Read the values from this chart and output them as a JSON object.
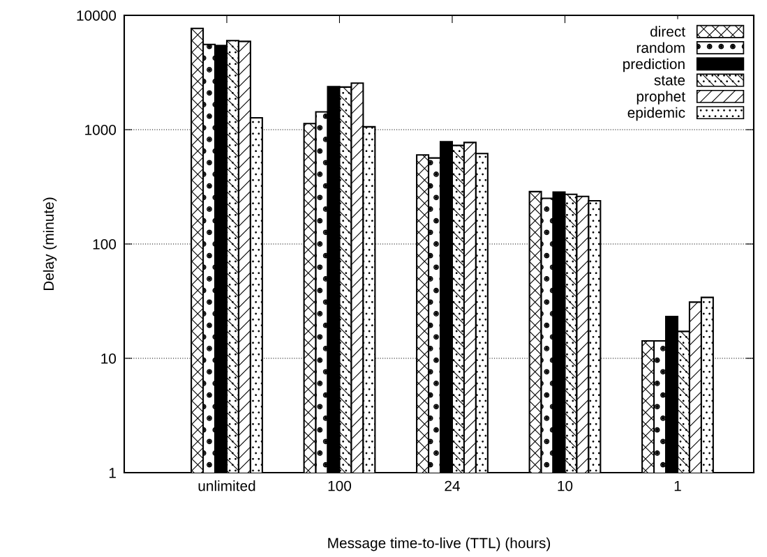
{
  "chart_data": {
    "type": "bar",
    "xlabel": "Message time-to-live (TTL) (hours)",
    "ylabel": "Delay (minute)",
    "categories": [
      "unlimited",
      "100",
      "24",
      "10",
      "1"
    ],
    "series": [
      {
        "name": "direct",
        "color": "#000000",
        "values": [
          7690,
          1130,
          601,
          287,
          14.2
        ]
      },
      {
        "name": "random",
        "color": "#000000",
        "values": [
          5570,
          1430,
          565,
          251,
          14.2
        ]
      },
      {
        "name": "prediction",
        "color": "#000000",
        "values": [
          5450,
          2380,
          784,
          284,
          23.2
        ]
      },
      {
        "name": "state",
        "color": "#000000",
        "values": [
          6010,
          2360,
          728,
          272,
          17.2
        ]
      },
      {
        "name": "prophet",
        "color": "#000000",
        "values": [
          5920,
          2550,
          773,
          261,
          31.0
        ]
      },
      {
        "name": "epidemic",
        "color": "#000000",
        "values": [
          1270,
          1060,
          618,
          239,
          34.1
        ]
      }
    ],
    "log": "y",
    "ylim": [
      1,
      10000
    ],
    "yticks": [
      1,
      10,
      100,
      1000,
      10000
    ],
    "grid": "y",
    "legend": "top right"
  }
}
